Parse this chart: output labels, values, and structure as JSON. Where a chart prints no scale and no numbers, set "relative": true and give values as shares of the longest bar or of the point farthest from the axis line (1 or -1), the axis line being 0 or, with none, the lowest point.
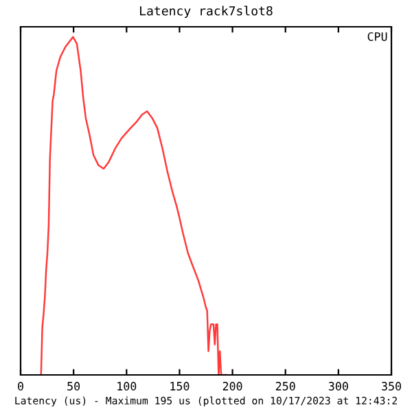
{
  "chart_data": {
    "type": "line",
    "title": "Latency rack7slot8",
    "xlabel": "Latency (us) - Maximum 195 us (plotted on 10/17/2023 at 12:43:2",
    "annotations": [
      "CPU"
    ],
    "relative": true,
    "xlim": [
      0,
      350
    ],
    "xticks": [
      0,
      50,
      100,
      150,
      200,
      250,
      300,
      350
    ],
    "grid": false,
    "legend": false,
    "x": [
      19.3,
      20.5,
      21.7,
      22.9,
      24.1,
      25.3,
      26.5,
      27.7,
      30.2,
      31.4,
      33.8,
      37.4,
      42.2,
      47.0,
      49.5,
      53.1,
      56.7,
      59.1,
      61.5,
      65.1,
      68.8,
      73.6,
      78.4,
      83.2,
      89.3,
      95.3,
      103.7,
      109.8,
      114.6,
      119.4,
      124.2,
      129.1,
      133.9,
      138.7,
      143.5,
      147.2,
      149.6,
      153.2,
      158.0,
      162.8,
      167.7,
      172.5,
      174.9,
      176.1,
      177.3,
      178.5,
      179.7,
      182.1,
      183.3,
      184.5,
      185.7,
      186.9,
      188.1,
      189.3,
      194.1
    ],
    "series": [
      {
        "color": "#ff3a3a",
        "values": [
          0,
          0.14,
          0.18,
          0.23,
          0.31,
          0.36,
          0.44,
          0.64,
          0.81,
          0.83,
          0.9,
          0.94,
          0.97,
          0.99,
          1.0,
          0.98,
          0.9,
          0.82,
          0.76,
          0.71,
          0.65,
          0.62,
          0.61,
          0.63,
          0.67,
          0.7,
          0.73,
          0.75,
          0.77,
          0.78,
          0.76,
          0.73,
          0.67,
          0.6,
          0.54,
          0.5,
          0.47,
          0.42,
          0.36,
          0.32,
          0.28,
          0.23,
          0.2,
          0.19,
          0.07,
          0.13,
          0.15,
          0.15,
          0.09,
          0.15,
          0.15,
          0.0,
          0.07,
          0.0,
          0.0
        ]
      }
    ]
  }
}
